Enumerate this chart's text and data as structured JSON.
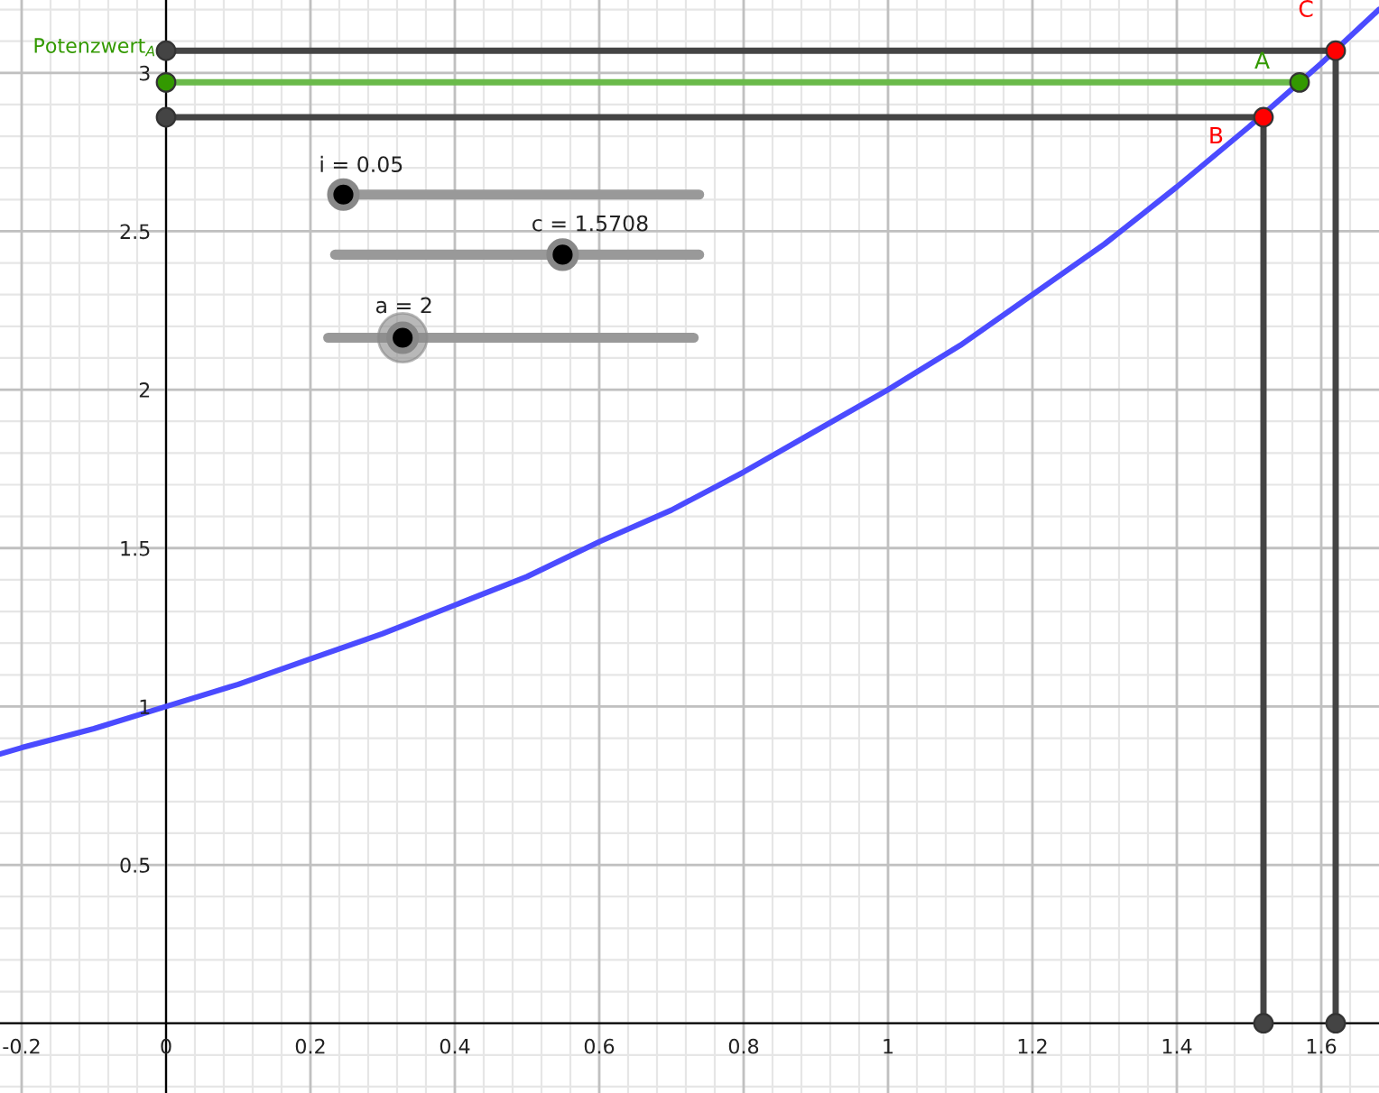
{
  "chart_data": {
    "type": "line",
    "xlim": [
      -0.23,
      1.68
    ],
    "ylim": [
      -0.22,
      3.23
    ],
    "xticks": [
      -0.2,
      0,
      0.2,
      0.4,
      0.6,
      0.8,
      1,
      1.2,
      1.4,
      1.6
    ],
    "yticks": [
      0.5,
      1,
      1.5,
      2,
      2.5,
      3
    ],
    "grid": true,
    "legend": false,
    "line_style": "solid",
    "series": [
      {
        "color": "#4b4bff",
        "marker": "none",
        "x": [
          -0.23,
          -0.2,
          -0.1,
          0,
          0.1,
          0.2,
          0.3,
          0.4,
          0.5,
          0.6,
          0.7,
          0.8,
          0.9,
          1,
          1.1,
          1.2,
          1.3,
          1.4,
          1.5,
          1.6,
          1.68
        ],
        "values": [
          0.85,
          0.87,
          0.93,
          1,
          1.07,
          1.15,
          1.23,
          1.32,
          1.41,
          1.52,
          1.62,
          1.74,
          1.87,
          2,
          2.14,
          2.3,
          2.46,
          2.64,
          2.83,
          3.03,
          3.2
        ]
      },
      {
        "color": "#444444",
        "marker": "none",
        "x": [
          0,
          1.62
        ],
        "values": [
          3.07,
          3.07
        ]
      },
      {
        "color": "#6aba4a",
        "marker": "none",
        "x": [
          0,
          1.57
        ],
        "values": [
          2.97,
          2.97
        ]
      },
      {
        "color": "#444444",
        "marker": "none",
        "x": [
          0,
          1.52
        ],
        "values": [
          2.86,
          2.86
        ]
      },
      {
        "color": "#444444",
        "marker": "none",
        "x": [
          1.52,
          1.52
        ],
        "values": [
          0,
          2.86
        ]
      },
      {
        "color": "#444444",
        "marker": "none",
        "x": [
          1.62,
          1.62
        ],
        "values": [
          0,
          3.07
        ]
      },
      {
        "type": "scatter",
        "color": "#444444",
        "marker": "circle",
        "x": [
          0,
          0,
          1.52,
          1.62
        ],
        "values": [
          3.07,
          2.86,
          0,
          0
        ]
      },
      {
        "type": "scatter",
        "color": "#339900",
        "marker": "circle",
        "x": [
          0,
          1.57
        ],
        "values": [
          2.97,
          2.97
        ]
      },
      {
        "type": "scatter",
        "color": "#ff0000",
        "marker": "circle",
        "x": [
          1.52,
          1.62
        ],
        "values": [
          2.86,
          3.07
        ]
      }
    ],
    "annotations": [
      {
        "text": "Potenzwert$_{A}$",
        "x": 0,
        "y": 2.97
      },
      {
        "text": "A",
        "x": 1.57,
        "y": 2.97
      },
      {
        "text": "B",
        "x": 1.52,
        "y": 2.86
      },
      {
        "text": "C",
        "x": 1.62,
        "y": 3.07
      },
      "i = 0.05",
      "c = 1.5708",
      "a = 2"
    ]
  }
}
